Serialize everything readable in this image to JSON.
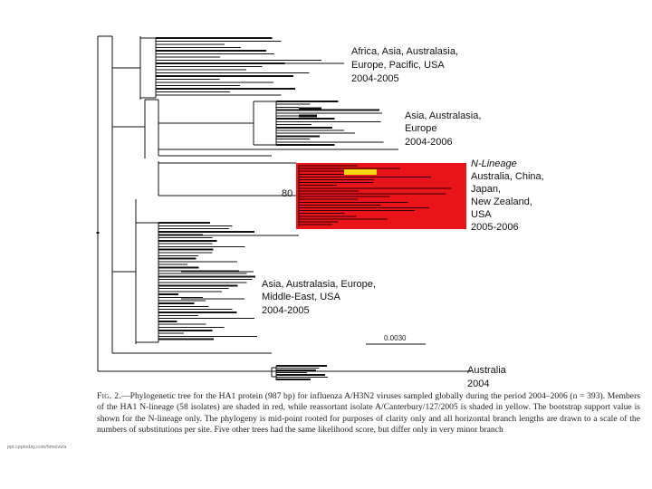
{
  "figure": {
    "clades": [
      {
        "id": "africa",
        "lines": [
          "Africa, Asia, Australasia,",
          "Europe, Pacific, USA",
          "2004-2005"
        ]
      },
      {
        "id": "asia-eu",
        "lines": [
          "Asia, Australasia,",
          "Europe",
          "2004-2006"
        ]
      },
      {
        "id": "nlineage",
        "title": "N-Lineage",
        "lines": [
          "Australia, China,",
          "Japan,",
          "New Zealand,",
          "USA",
          "2005-2006"
        ]
      },
      {
        "id": "asia-me",
        "lines": [
          "Asia, Australasia, Europe,",
          "Middle-East, USA",
          "2004-2005"
        ]
      },
      {
        "id": "australia",
        "lines": [
          "Australia",
          "2004"
        ]
      }
    ],
    "bootstrap_value": "80",
    "scale_bar_label": "0.0030",
    "colors": {
      "nlineage": "#e8141a",
      "reassortant": "#f5d90a",
      "branch": "#111111"
    }
  },
  "caption": {
    "label": "Fig. 2.",
    "text": "—Phylogenetic tree for the HA1 protein (987 bp) for influenza A/H3N2 viruses sampled globally during the period 2004–2006 (n = 393). Members of the HA1 N-lineage (58 isolates) are shaded in red, while reassortant isolate A/Canterbury/127/2005 is shaded in yellow. The bootstrap support value is shown for the N-lineage only. The phylogeny is mid-point rooted for purposes of clarity only and all horizontal branch lengths are drawn to a scale of the numbers of substitutions per site. Five other trees had the same likelihood score, but differ only in very minor branch"
  },
  "footer_note": "ppt.cpptoday.com/hmolvv/a"
}
